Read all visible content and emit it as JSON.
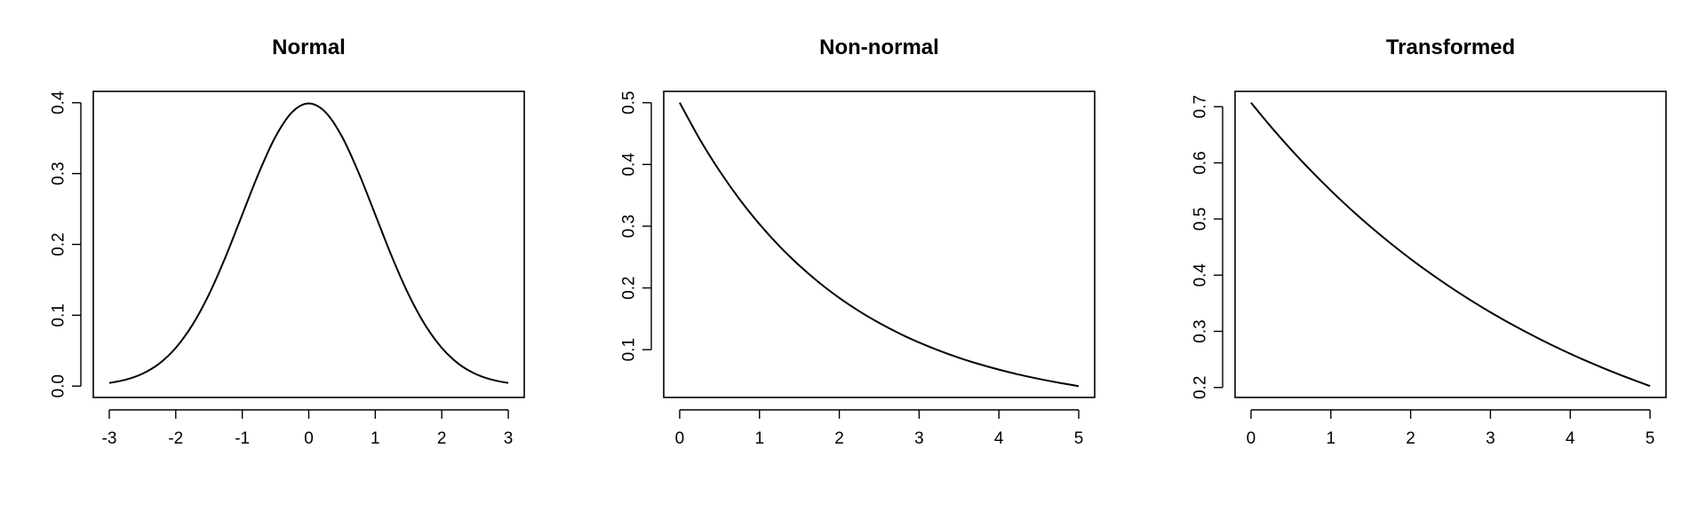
{
  "chart_data": [
    {
      "type": "line",
      "title": "Normal",
      "xlabel": "",
      "ylabel": "",
      "xlim": [
        -3,
        3
      ],
      "ylim": [
        0,
        0.4
      ],
      "xticks": [
        -3,
        -2,
        -1,
        0,
        1,
        2,
        3
      ],
      "xtick_labels": [
        "-3",
        "-2",
        "-1",
        "0",
        "1",
        "2",
        "3"
      ],
      "yticks": [
        0,
        0.1,
        0.2,
        0.3,
        0.4
      ],
      "ytick_labels": [
        "0.0",
        "0.1",
        "0.2",
        "0.3",
        "0.4"
      ],
      "grid": false,
      "series": [
        {
          "x": [
            -3,
            -2.75,
            -2.5,
            -2.25,
            -2,
            -1.75,
            -1.5,
            -1.25,
            -1,
            -0.75,
            -0.5,
            -0.25,
            0,
            0.25,
            0.5,
            0.75,
            1,
            1.25,
            1.5,
            1.75,
            2,
            2.25,
            2.5,
            2.75,
            3
          ],
          "y": [
            0.0044,
            0.0091,
            0.0175,
            0.0317,
            0.054,
            0.0863,
            0.1295,
            0.1826,
            0.242,
            0.3011,
            0.3521,
            0.3867,
            0.3989,
            0.3867,
            0.3521,
            0.3011,
            0.242,
            0.1826,
            0.1295,
            0.0863,
            0.054,
            0.0317,
            0.0175,
            0.0091,
            0.0044
          ]
        }
      ]
    },
    {
      "type": "line",
      "title": "Non-normal",
      "xlabel": "",
      "ylabel": "",
      "xlim": [
        0,
        5
      ],
      "ylim": [
        0.041,
        0.5
      ],
      "xticks": [
        0,
        1,
        2,
        3,
        4,
        5
      ],
      "xtick_labels": [
        "0",
        "1",
        "2",
        "3",
        "4",
        "5"
      ],
      "yticks": [
        0.1,
        0.2,
        0.3,
        0.4,
        0.5
      ],
      "ytick_labels": [
        "0.1",
        "0.2",
        "0.3",
        "0.4",
        "0.5"
      ],
      "grid": false,
      "series": [
        {
          "x": [
            0,
            0.25,
            0.5,
            0.75,
            1,
            1.25,
            1.5,
            1.75,
            2,
            2.25,
            2.5,
            2.75,
            3,
            3.25,
            3.5,
            3.75,
            4,
            4.25,
            4.5,
            4.75,
            5
          ],
          "y": [
            0.5,
            0.4412,
            0.3894,
            0.3436,
            0.3033,
            0.2676,
            0.2362,
            0.2084,
            0.1839,
            0.1623,
            0.1433,
            0.1264,
            0.1116,
            0.0985,
            0.0869,
            0.0767,
            0.0677,
            0.0597,
            0.0527,
            0.0465,
            0.041
          ]
        }
      ]
    },
    {
      "type": "line",
      "title": "Transformed",
      "xlabel": "",
      "ylabel": "",
      "xlim": [
        0,
        5
      ],
      "ylim": [
        0.2025,
        0.7071
      ],
      "xticks": [
        0,
        1,
        2,
        3,
        4,
        5
      ],
      "xtick_labels": [
        "0",
        "1",
        "2",
        "3",
        "4",
        "5"
      ],
      "yticks": [
        0.2,
        0.3,
        0.4,
        0.5,
        0.6,
        0.7
      ],
      "ytick_labels": [
        "0.2",
        "0.3",
        "0.4",
        "0.5",
        "0.6",
        "0.7"
      ],
      "grid": false,
      "series": [
        {
          "x": [
            0,
            0.25,
            0.5,
            0.75,
            1,
            1.25,
            1.5,
            1.75,
            2,
            2.25,
            2.5,
            2.75,
            3,
            3.25,
            3.5,
            3.75,
            4,
            4.25,
            4.5,
            4.75,
            5
          ],
          "y": [
            0.7071,
            0.6642,
            0.624,
            0.5862,
            0.5507,
            0.5173,
            0.486,
            0.4566,
            0.4289,
            0.4029,
            0.3785,
            0.3556,
            0.334,
            0.3138,
            0.2948,
            0.2769,
            0.2601,
            0.2444,
            0.2296,
            0.2157,
            0.2025
          ]
        }
      ]
    }
  ]
}
